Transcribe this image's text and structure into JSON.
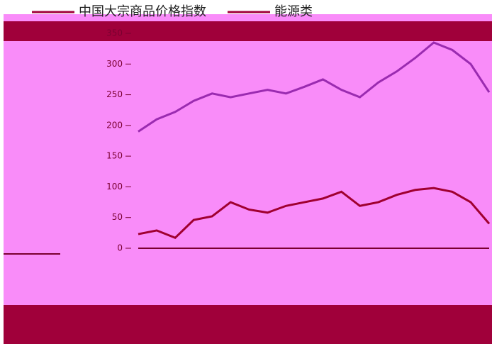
{
  "chart_data": {
    "type": "line",
    "categories": [
      null,
      null,
      null,
      null,
      null,
      null,
      null,
      null,
      null,
      null,
      null,
      null,
      null,
      null,
      null,
      null,
      null,
      null,
      null,
      null
    ],
    "series": [
      {
        "name": "中国大宗商品价格指数",
        "color": "#9a2bb0",
        "values": [
          190,
          210,
          222,
          240,
          252,
          246,
          252,
          258,
          252,
          263,
          275,
          258,
          246,
          270,
          288,
          310,
          335,
          323,
          300,
          254
        ]
      },
      {
        "name": "能源类",
        "color": "#a00030",
        "values": [
          23,
          29,
          17,
          46,
          52,
          75,
          63,
          58,
          69,
          75,
          81,
          92,
          69,
          75,
          87,
          95,
          98,
          92,
          75,
          40
        ]
      }
    ],
    "ylim": [
      0,
      350
    ],
    "yticks": [
      0,
      50,
      100,
      150,
      200,
      250,
      300,
      350
    ],
    "grid": false
  }
}
